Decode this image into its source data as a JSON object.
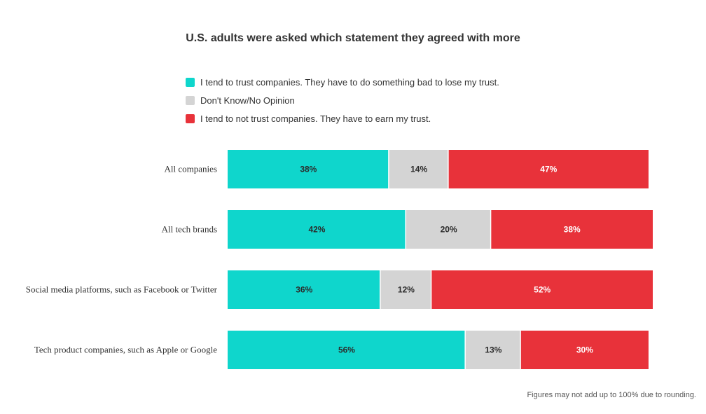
{
  "chart_data": {
    "type": "bar",
    "orientation": "horizontal",
    "stacked": true,
    "title": "U.S. adults were asked which statement they agreed with more",
    "categories": [
      "All companies",
      "All tech brands",
      "Social media platforms, such as Facebook or Twitter",
      "Tech product companies, such as Apple or Google"
    ],
    "series": [
      {
        "name": "I tend to trust companies. They have to do something bad to lose my trust.",
        "color": "#0fd6cc",
        "label_color": "#2b2b2b",
        "values": [
          38,
          42,
          36,
          56
        ]
      },
      {
        "name": "Don't Know/No Opinion",
        "color": "#d4d4d4",
        "label_color": "#2b2b2b",
        "values": [
          14,
          20,
          12,
          13
        ]
      },
      {
        "name": "I tend to not trust companies. They have to earn my trust.",
        "color": "#e8323a",
        "label_color": "#ffffff",
        "values": [
          47,
          38,
          52,
          30
        ]
      }
    ],
    "value_suffix": "%",
    "xlim": [
      0,
      100
    ],
    "grid": false,
    "legend_position": "top",
    "footnote": "Figures may not add up to 100% due to rounding."
  }
}
